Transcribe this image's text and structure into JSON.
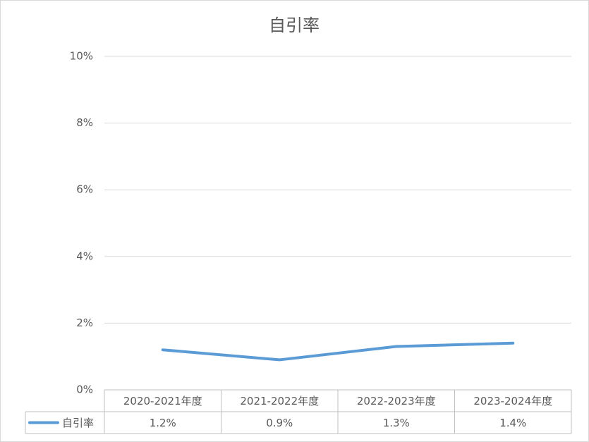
{
  "chart_data": {
    "type": "line",
    "title": "自引率",
    "categories": [
      "2020-2021年度",
      "2021-2022年度",
      "2022-2023年度",
      "2023-2024年度"
    ],
    "series": [
      {
        "name": "自引率",
        "color": "#5b9bd5",
        "values": [
          1.2,
          0.9,
          1.3,
          1.4
        ],
        "value_labels": [
          "1.2%",
          "0.9%",
          "1.3%",
          "1.4%"
        ]
      }
    ],
    "ylim": [
      0,
      10
    ],
    "yticks": [
      {
        "value": 0,
        "label": "0%"
      },
      {
        "value": 2,
        "label": "2%"
      },
      {
        "value": 4,
        "label": "4%"
      },
      {
        "value": 6,
        "label": "6%"
      },
      {
        "value": 8,
        "label": "8%"
      },
      {
        "value": 10,
        "label": "10%"
      }
    ],
    "grid": true
  }
}
